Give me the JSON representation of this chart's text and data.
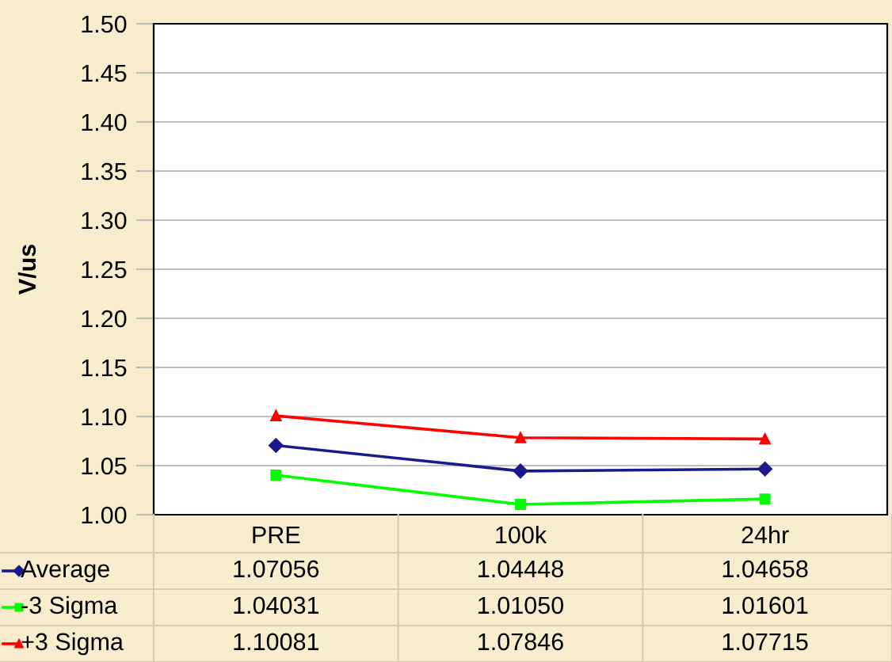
{
  "chart_data": {
    "type": "line",
    "ylabel": "V/us",
    "categories": [
      "PRE",
      "100k",
      "24hr"
    ],
    "series": [
      {
        "name": "Average",
        "color": "#1a1a8c",
        "marker": "diamond",
        "values": [
          1.07056,
          1.04448,
          1.04658
        ],
        "value_labels": [
          "1.07056",
          "1.04448",
          "1.04658"
        ]
      },
      {
        "name": "-3 Sigma",
        "color": "#00ff00",
        "marker": "square",
        "values": [
          1.04031,
          1.0105,
          1.01601
        ],
        "value_labels": [
          "1.04031",
          "1.01050",
          "1.01601"
        ]
      },
      {
        "name": "+3 Sigma",
        "color": "#ff0000",
        "marker": "triangle",
        "values": [
          1.10081,
          1.07846,
          1.07715
        ],
        "value_labels": [
          "1.10081",
          "1.07846",
          "1.07715"
        ]
      }
    ],
    "ylim": [
      1.0,
      1.5
    ],
    "yticks": [
      {
        "value": 1.0,
        "label": "1.00"
      },
      {
        "value": 1.05,
        "label": "1.05"
      },
      {
        "value": 1.1,
        "label": "1.10"
      },
      {
        "value": 1.15,
        "label": "1.15"
      },
      {
        "value": 1.2,
        "label": "1.20"
      },
      {
        "value": 1.25,
        "label": "1.25"
      },
      {
        "value": 1.3,
        "label": "1.30"
      },
      {
        "value": 1.35,
        "label": "1.35"
      },
      {
        "value": 1.4,
        "label": "1.40"
      },
      {
        "value": 1.45,
        "label": "1.45"
      },
      {
        "value": 1.5,
        "label": "1.50"
      }
    ],
    "grid": "y",
    "legend": "bottom"
  }
}
